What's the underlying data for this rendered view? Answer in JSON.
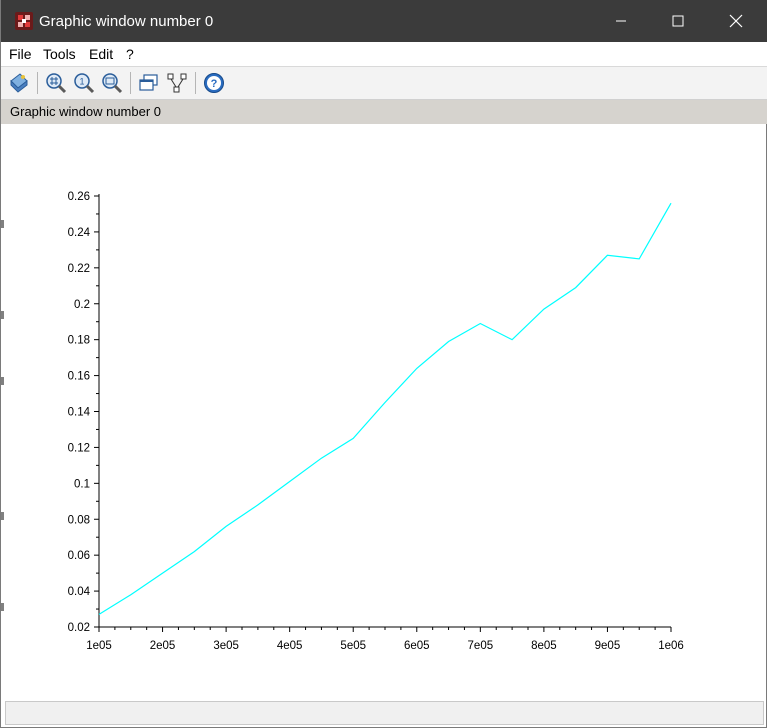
{
  "window": {
    "title": "Graphic window number 0",
    "controls": {
      "minimize": "minimize",
      "maximize": "maximize",
      "close": "close"
    }
  },
  "menu": {
    "items": [
      "File",
      "Tools",
      "Edit",
      "?"
    ]
  },
  "toolbar": {
    "icons": [
      "datatip-icon",
      "zoom-in-icon",
      "zoom-original-icon",
      "zoom-out-icon",
      "new-window-icon",
      "rotate-icon",
      "help-icon"
    ]
  },
  "info_bar": {
    "text": "Graphic window number 0"
  },
  "status_bar": {
    "text": ""
  },
  "chart_data": {
    "type": "line",
    "title": "",
    "xlabel": "",
    "ylabel": "",
    "xlim": [
      100000,
      1000000
    ],
    "ylim": [
      0.02,
      0.26
    ],
    "x_tick_labels": [
      "1e05",
      "2e05",
      "3e05",
      "4e05",
      "5e05",
      "6e05",
      "7e05",
      "8e05",
      "9e05",
      "1e06"
    ],
    "y_tick_labels": [
      "0.02",
      "0.04",
      "0.06",
      "0.08",
      "0.1",
      "0.12",
      "0.14",
      "0.16",
      "0.18",
      "0.2",
      "0.22",
      "0.24",
      "0.26"
    ],
    "grid": false,
    "legend": "none",
    "series": [
      {
        "color": "#00ffff",
        "x": [
          100000,
          150000,
          200000,
          250000,
          300000,
          350000,
          400000,
          450000,
          500000,
          550000,
          600000,
          650000,
          700000,
          750000,
          800000,
          850000,
          900000,
          950000,
          1000000
        ],
        "values": [
          0.027,
          0.038,
          0.05,
          0.062,
          0.076,
          0.088,
          0.101,
          0.114,
          0.125,
          0.145,
          0.164,
          0.179,
          0.189,
          0.18,
          0.197,
          0.209,
          0.227,
          0.225,
          0.256
        ]
      }
    ]
  }
}
